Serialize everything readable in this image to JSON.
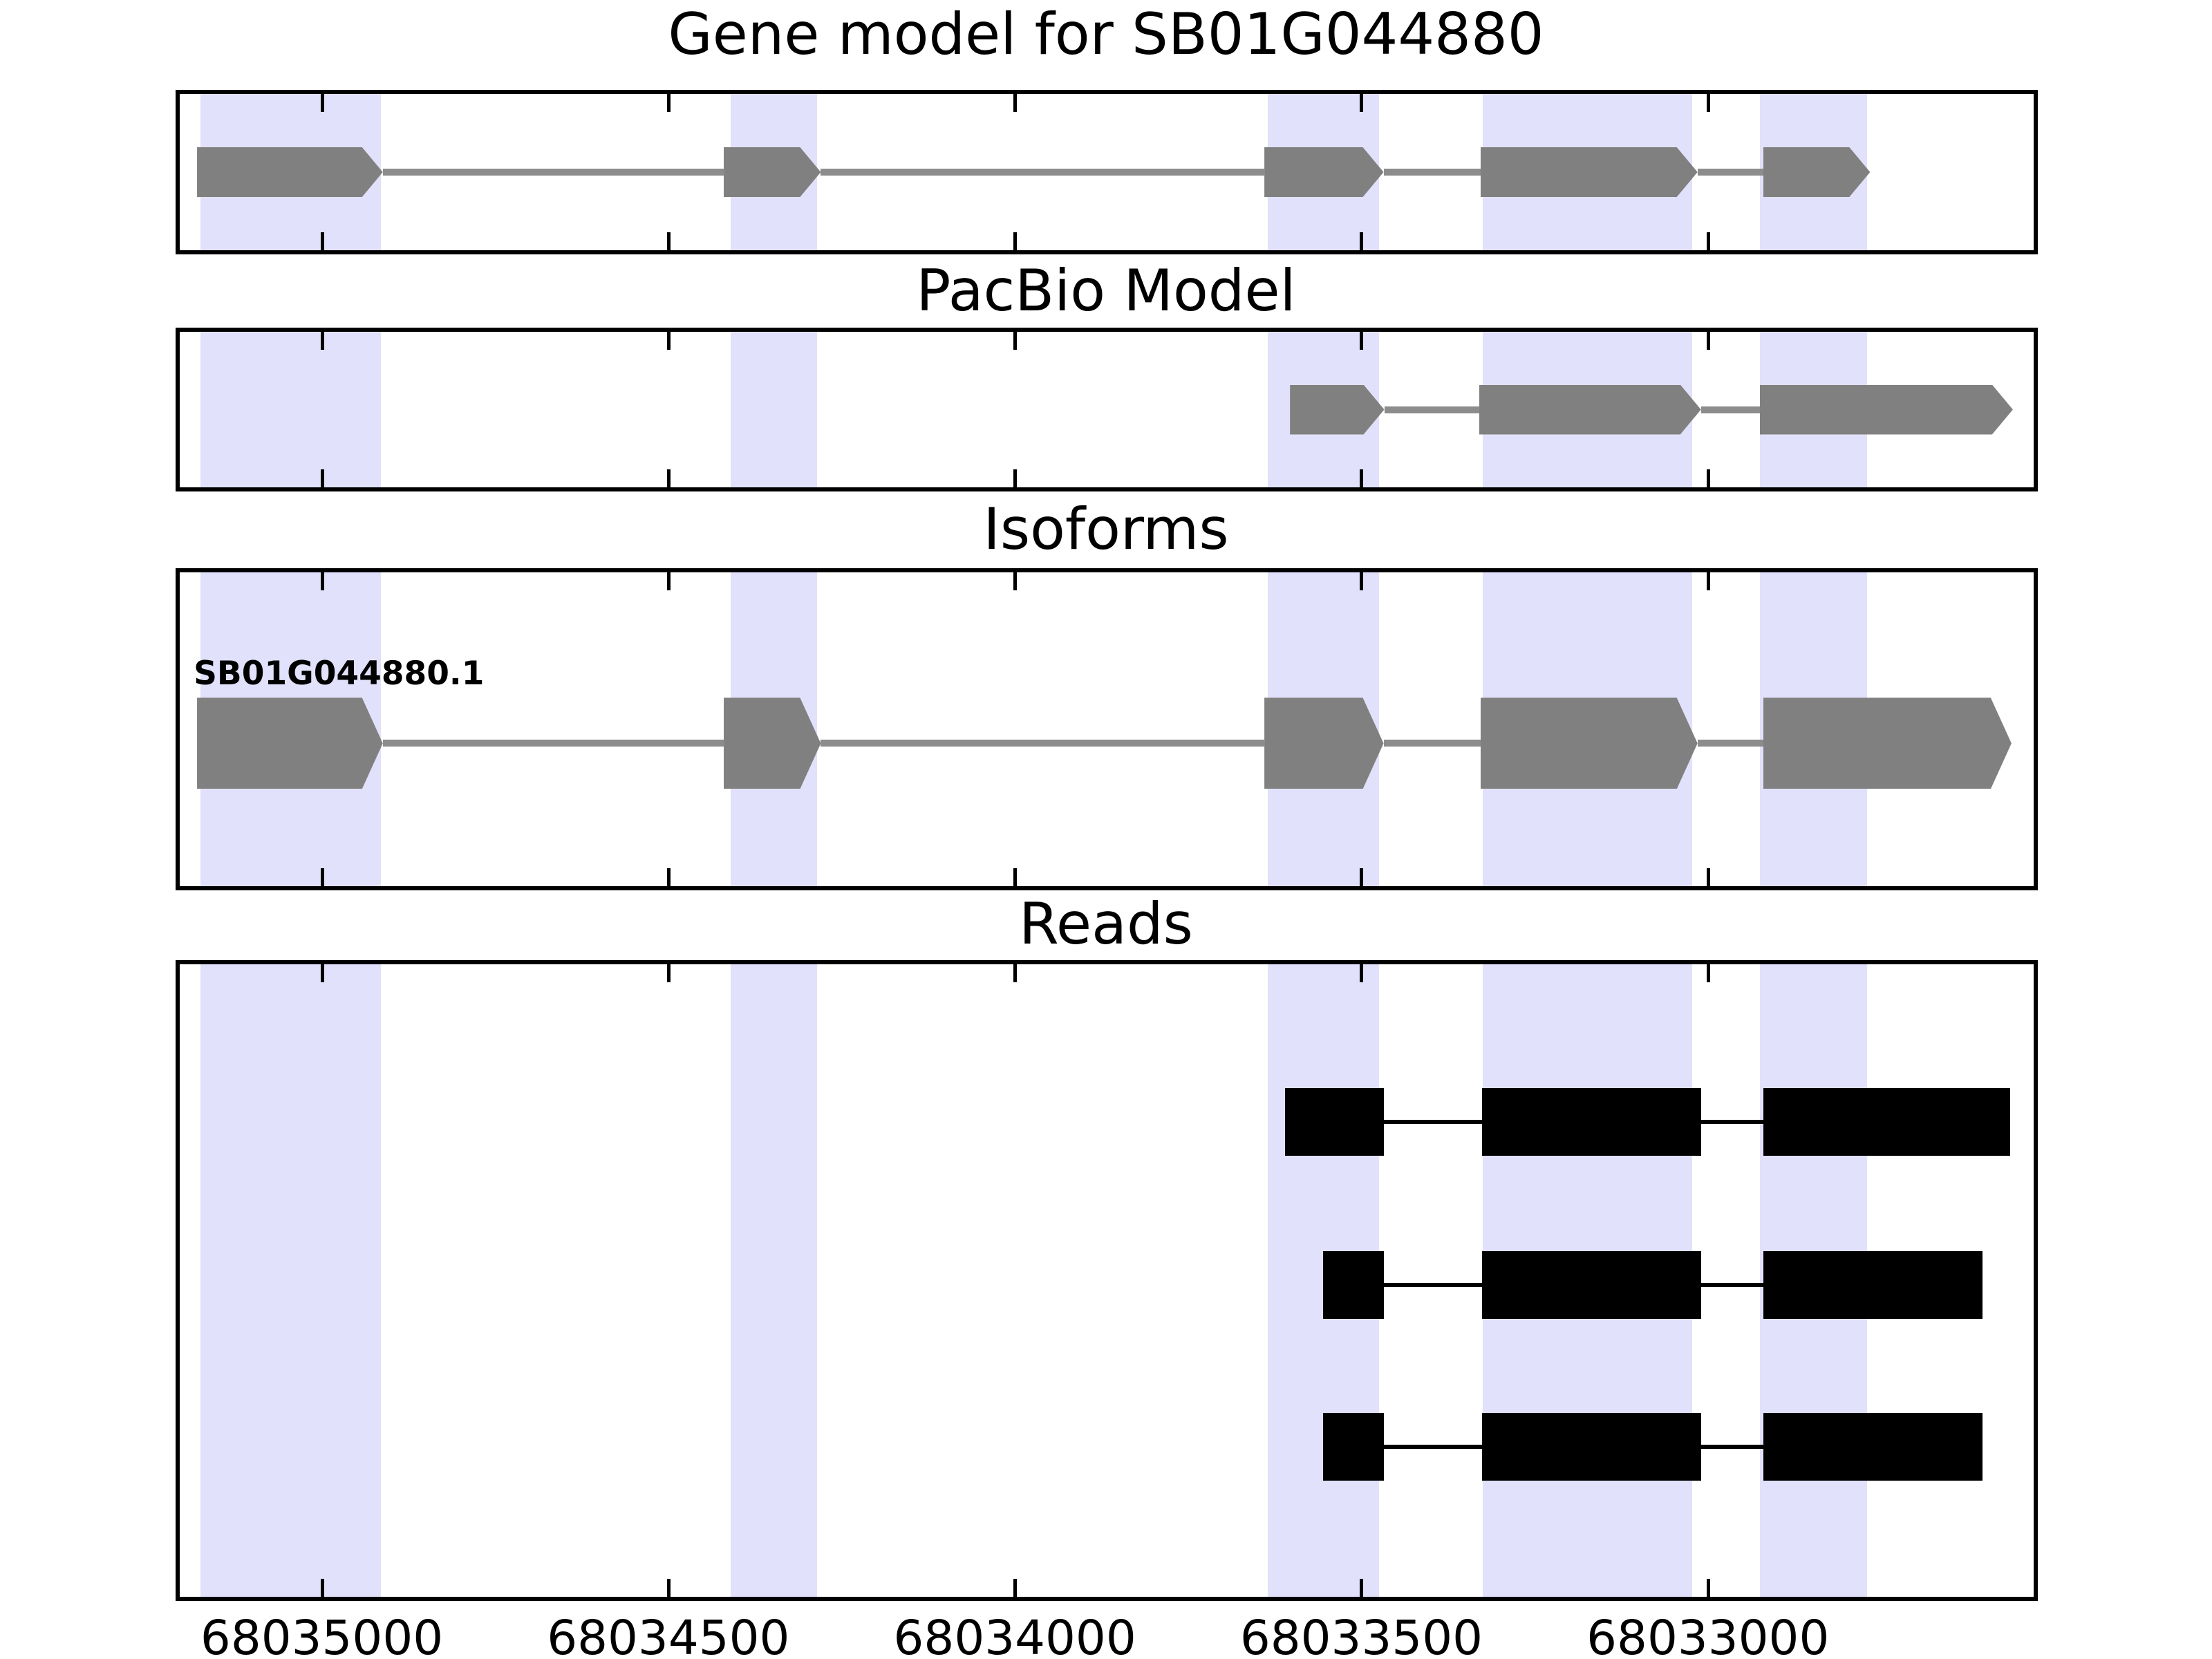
{
  "figure": {
    "background": "#ffffff"
  },
  "colors": {
    "exon_fill": "#808080",
    "intron_line": "#8c8c8c",
    "read_fill": "#000000",
    "read_connector": "#000000",
    "highlight_band": "#e1e1fb",
    "panel_border": "#000000",
    "text": "#000000"
  },
  "chart_data": {
    "type": "gene-model-tracks",
    "gene_id": "SB01G044880",
    "axis": {
      "xlim": [
        68035205,
        68032530
      ],
      "orientation": "reversed",
      "tick_positions": [
        68035000,
        68034500,
        68034000,
        68033500,
        68033000
      ],
      "tick_labels": [
        "68035000",
        "68034500",
        "68034000",
        "68033500",
        "68033000"
      ]
    },
    "highlight_regions": [
      {
        "start": 68035175,
        "end": 68034915
      },
      {
        "start": 68034410,
        "end": 68034285
      },
      {
        "start": 68033635,
        "end": 68033475
      },
      {
        "start": 68033325,
        "end": 68033023
      },
      {
        "start": 68032925,
        "end": 68032770
      }
    ],
    "panels": [
      {
        "id": "gene-model",
        "title": "Gene model for SB01G044880",
        "type": "transcript",
        "transcripts": [
          {
            "name": "",
            "arrow": "right",
            "exons": [
              [
                68035180,
                68034912
              ],
              [
                68034420,
                68034280
              ],
              [
                68033640,
                68033468
              ],
              [
                68033328,
                68033015
              ],
              [
                68032920,
                68032766
              ]
            ]
          }
        ]
      },
      {
        "id": "pacbio-model",
        "title": "PacBio Model",
        "type": "transcript",
        "transcripts": [
          {
            "name": "",
            "arrow": "right",
            "exons": [
              [
                68033603,
                68033467
              ],
              [
                68033330,
                68033010
              ],
              [
                68032925,
                68032560
              ]
            ]
          }
        ]
      },
      {
        "id": "isoforms",
        "title": "Isoforms",
        "type": "transcript",
        "transcripts": [
          {
            "name": "SB01G044880.1",
            "arrow": "right",
            "exons": [
              [
                68035180,
                68034912
              ],
              [
                68034420,
                68034280
              ],
              [
                68033640,
                68033468
              ],
              [
                68033328,
                68033015
              ],
              [
                68032920,
                68032562
              ]
            ]
          }
        ]
      },
      {
        "id": "reads",
        "title": "Reads",
        "type": "reads",
        "reads": [
          {
            "blocks": [
              [
                68033610,
                68033468
              ],
              [
                68033326,
                68033010
              ],
              [
                68032920,
                68032564
              ]
            ]
          },
          {
            "blocks": [
              [
                68033555,
                68033468
              ],
              [
                68033326,
                68033010
              ],
              [
                68032920,
                68032604
              ]
            ]
          },
          {
            "blocks": [
              [
                68033555,
                68033468
              ],
              [
                68033326,
                68033010
              ],
              [
                68032920,
                68032604
              ]
            ]
          }
        ]
      }
    ]
  }
}
